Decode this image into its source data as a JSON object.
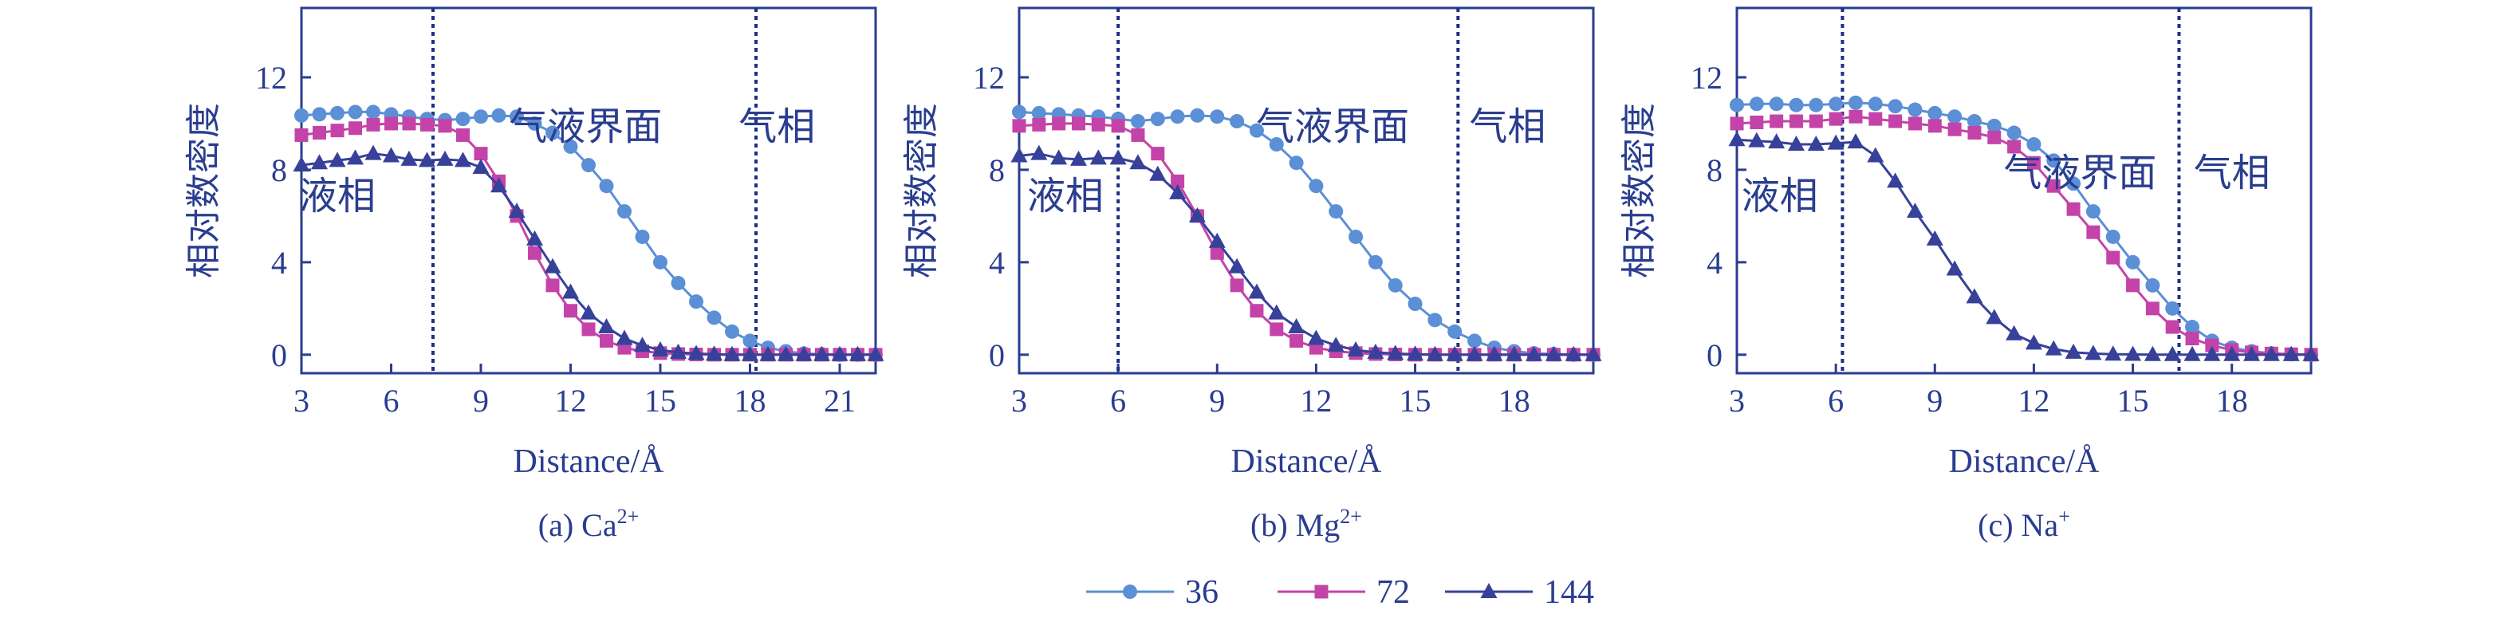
{
  "chart_data": [
    {
      "type": "line",
      "caption_prefix": "(a) Ca",
      "caption_sup": "2+",
      "xlabel": "Distance/Å",
      "ylabel": "相对数密度",
      "xlim": [
        3,
        22.2
      ],
      "ylim": [
        -0.8,
        15
      ],
      "xticks": [
        "3",
        "6",
        "9",
        "12",
        "15",
        "18",
        "21"
      ],
      "xtick_values": [
        3,
        6,
        9,
        12,
        15,
        18,
        21
      ],
      "yticks": [
        "0",
        "4",
        "8",
        "12"
      ],
      "ytick_values": [
        0,
        4,
        8,
        12
      ],
      "dividers": [
        7.4,
        18.2
      ],
      "annotations": [
        {
          "text": "液相",
          "x": 4.2,
          "y": 6.3
        },
        {
          "text": "气液界面",
          "x": 12.5,
          "y": 9.3
        },
        {
          "text": "气相",
          "x": 18.9,
          "y": 9.3
        }
      ],
      "series": [
        {
          "name": "36",
          "values": [
            10.35,
            10.4,
            10.45,
            10.5,
            10.5,
            10.4,
            10.3,
            10.2,
            10.15,
            10.2,
            10.3,
            10.35,
            10.3,
            10.0,
            9.6,
            9.0,
            8.2,
            7.3,
            6.2,
            5.1,
            4.0,
            3.1,
            2.3,
            1.6,
            1.0,
            0.6,
            0.3,
            0.15,
            0.05,
            0.02,
            0.0,
            0.0,
            0.0
          ]
        },
        {
          "name": "72",
          "values": [
            9.5,
            9.6,
            9.7,
            9.8,
            9.95,
            10.0,
            10.0,
            9.95,
            9.9,
            9.5,
            8.7,
            7.5,
            6.0,
            4.4,
            3.0,
            1.9,
            1.1,
            0.6,
            0.3,
            0.15,
            0.07,
            0.03,
            0.01,
            0.0,
            0.0,
            0.0,
            0.0,
            0.0,
            0.0,
            0.0,
            0.0,
            0.0,
            0.0
          ]
        },
        {
          "name": "144",
          "values": [
            8.2,
            8.3,
            8.4,
            8.5,
            8.7,
            8.6,
            8.45,
            8.4,
            8.45,
            8.4,
            8.1,
            7.3,
            6.2,
            5.0,
            3.8,
            2.7,
            1.8,
            1.2,
            0.7,
            0.4,
            0.2,
            0.1,
            0.05,
            0.02,
            0.0,
            0.0,
            0.0,
            0.0,
            0.0,
            0.0,
            0.0,
            0.0,
            0.0
          ]
        }
      ],
      "x": [
        3,
        3.6,
        4.2,
        4.8,
        5.4,
        6,
        6.6,
        7.2,
        7.8,
        8.4,
        9,
        9.6,
        10.2,
        10.8,
        11.4,
        12,
        12.6,
        13.2,
        13.8,
        14.4,
        15,
        15.6,
        16.2,
        16.8,
        17.4,
        18,
        18.6,
        19.2,
        19.8,
        20.4,
        21,
        21.6,
        22.2
      ]
    },
    {
      "type": "line",
      "caption_prefix": "(b) Mg",
      "caption_sup": "2+",
      "xlabel": "Distance/Å",
      "ylabel": "相对数密度",
      "xlim": [
        3,
        20.4
      ],
      "ylim": [
        -0.8,
        15
      ],
      "xticks": [
        "3",
        "6",
        "9",
        "12",
        "15",
        "18"
      ],
      "xtick_values": [
        3,
        6,
        9,
        12,
        15,
        18
      ],
      "yticks": [
        "0",
        "4",
        "8",
        "12"
      ],
      "ytick_values": [
        0,
        4,
        8,
        12
      ],
      "dividers": [
        6.0,
        16.3
      ],
      "annotations": [
        {
          "text": "液相",
          "x": 4.4,
          "y": 6.3
        },
        {
          "text": "气液界面",
          "x": 12.5,
          "y": 9.3
        },
        {
          "text": "气相",
          "x": 17.8,
          "y": 9.3
        }
      ],
      "series": [
        {
          "name": "36",
          "values": [
            10.5,
            10.45,
            10.4,
            10.35,
            10.3,
            10.2,
            10.1,
            10.2,
            10.3,
            10.35,
            10.3,
            10.1,
            9.7,
            9.1,
            8.3,
            7.3,
            6.2,
            5.1,
            4.0,
            3.0,
            2.2,
            1.5,
            1.0,
            0.6,
            0.3,
            0.15,
            0.06,
            0.03,
            0.0,
            0.0
          ]
        },
        {
          "name": "72",
          "values": [
            9.9,
            9.95,
            10.0,
            10.0,
            9.95,
            9.9,
            9.5,
            8.7,
            7.5,
            6.0,
            4.4,
            3.0,
            1.9,
            1.1,
            0.6,
            0.3,
            0.15,
            0.07,
            0.03,
            0.01,
            0.0,
            0.0,
            0.0,
            0.0,
            0.0,
            0.0,
            0.0,
            0.0,
            0.0,
            0.0
          ]
        },
        {
          "name": "144",
          "values": [
            8.6,
            8.7,
            8.5,
            8.45,
            8.5,
            8.5,
            8.3,
            7.8,
            7.0,
            6.0,
            4.9,
            3.8,
            2.7,
            1.8,
            1.2,
            0.7,
            0.4,
            0.2,
            0.1,
            0.05,
            0.02,
            0.0,
            0.0,
            0.0,
            0.0,
            0.0,
            0.0,
            0.0,
            0.0,
            0.0
          ]
        }
      ],
      "x": [
        3,
        3.6,
        4.2,
        4.8,
        5.4,
        6,
        6.6,
        7.2,
        7.8,
        8.4,
        9,
        9.6,
        10.2,
        10.8,
        11.4,
        12,
        12.6,
        13.2,
        13.8,
        14.4,
        15,
        15.6,
        16.2,
        16.8,
        17.4,
        18,
        18.6,
        19.2,
        19.8,
        20.4
      ]
    },
    {
      "type": "line",
      "caption_prefix": "(c) Na",
      "caption_sup": "+",
      "xlabel": "Distance/Å",
      "ylabel": "相对数密度",
      "xlim": [
        3,
        20.4
      ],
      "ylim": [
        -0.8,
        15
      ],
      "xticks": [
        "3",
        "6",
        "9",
        "12",
        "15",
        "18"
      ],
      "xtick_values": [
        3,
        6,
        9,
        12,
        15,
        18
      ],
      "yticks": [
        "0",
        "4",
        "8",
        "12"
      ],
      "ytick_values": [
        0,
        4,
        8,
        12
      ],
      "dividers": [
        6.2,
        16.4
      ],
      "annotations": [
        {
          "text": "液相",
          "x": 4.3,
          "y": 6.3
        },
        {
          "text": "气液界面",
          "x": 13.4,
          "y": 7.3
        },
        {
          "text": "气相",
          "x": 18.0,
          "y": 7.3
        }
      ],
      "series": [
        {
          "name": "36",
          "values": [
            10.8,
            10.85,
            10.85,
            10.8,
            10.8,
            10.85,
            10.9,
            10.85,
            10.75,
            10.6,
            10.45,
            10.3,
            10.1,
            9.9,
            9.6,
            9.1,
            8.4,
            7.4,
            6.2,
            5.1,
            4.0,
            3.0,
            2.0,
            1.2,
            0.6,
            0.3,
            0.15,
            0.06,
            0.02,
            0.0
          ]
        },
        {
          "name": "72",
          "values": [
            10.0,
            10.05,
            10.1,
            10.1,
            10.1,
            10.2,
            10.3,
            10.2,
            10.1,
            10.0,
            9.9,
            9.75,
            9.6,
            9.4,
            9.0,
            8.3,
            7.3,
            6.3,
            5.3,
            4.2,
            3.0,
            2.0,
            1.2,
            0.7,
            0.4,
            0.2,
            0.1,
            0.05,
            0.02,
            0.0
          ]
        },
        {
          "name": "144",
          "values": [
            9.3,
            9.25,
            9.2,
            9.1,
            9.1,
            9.15,
            9.2,
            8.6,
            7.5,
            6.2,
            5.0,
            3.7,
            2.5,
            1.6,
            0.9,
            0.5,
            0.25,
            0.1,
            0.05,
            0.02,
            0.01,
            0.0,
            0.0,
            0.0,
            0.0,
            0.0,
            0.0,
            0.0,
            0.0,
            0.0
          ]
        }
      ],
      "x": [
        3,
        3.6,
        4.2,
        4.8,
        5.4,
        6,
        6.6,
        7.2,
        7.8,
        8.4,
        9,
        9.6,
        10.2,
        10.8,
        11.4,
        12,
        12.6,
        13.2,
        13.8,
        14.4,
        15,
        15.6,
        16.2,
        16.8,
        17.4,
        18,
        18.6,
        19.2,
        19.8,
        20.4
      ]
    }
  ],
  "legend": {
    "placement": "bottom-center",
    "items": [
      {
        "label": "36",
        "color": "#5b8fd6",
        "marker": "circle"
      },
      {
        "label": "72",
        "color": "#c443a8",
        "marker": "square"
      },
      {
        "label": "144",
        "color": "#37419a",
        "marker": "triangle"
      }
    ]
  },
  "colors": {
    "axis": "#2a3d8f",
    "divider": "#1e2f86"
  }
}
